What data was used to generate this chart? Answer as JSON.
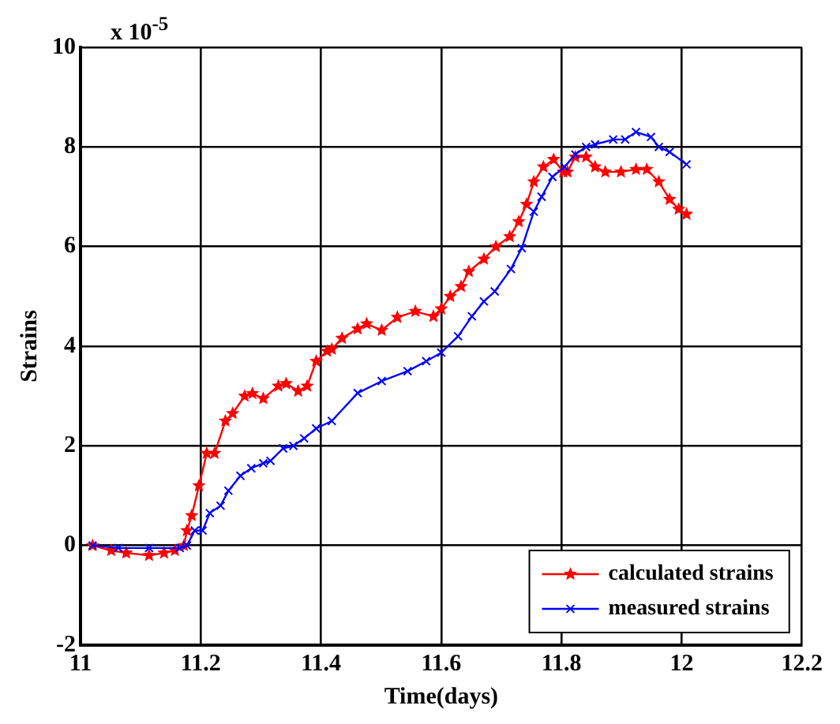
{
  "chart_data": {
    "type": "line",
    "xlabel": "Time(days)",
    "ylabel": "Strains",
    "annotations": [
      "x 10$^{-5}$"
    ],
    "xlim": [
      11,
      12.2
    ],
    "xticks": [
      11,
      11.2,
      11.4,
      11.6,
      11.8,
      12,
      12.2
    ],
    "ylim": [
      -2,
      10
    ],
    "yticks": [
      -2,
      0,
      2,
      4,
      6,
      8,
      10
    ],
    "grid": true,
    "legend": "bottom right",
    "line_style": "solid",
    "series": [
      {
        "name": "calculated strains",
        "color": "#ff0000",
        "marker": "star",
        "x": [
          11.02,
          11.051,
          11.076,
          11.114,
          11.139,
          11.157,
          11.172,
          11.177,
          11.185,
          11.197,
          11.21,
          11.223,
          11.241,
          11.253,
          11.273,
          11.286,
          11.304,
          11.329,
          11.342,
          11.362,
          11.377,
          11.392,
          11.41,
          11.418,
          11.435,
          11.461,
          11.476,
          11.501,
          11.527,
          11.557,
          11.587,
          11.6,
          11.615,
          11.633,
          11.646,
          11.671,
          11.691,
          11.714,
          11.729,
          11.742,
          11.754,
          11.77,
          11.787,
          11.803,
          11.81,
          11.823,
          11.841,
          11.856,
          11.873,
          11.899,
          11.924,
          11.942,
          11.962,
          11.98,
          11.995,
          12.008
        ],
        "values": [
          0,
          -0.1,
          -0.15,
          -0.2,
          -0.15,
          -0.1,
          0,
          0.3,
          0.6,
          1.2,
          1.85,
          1.85,
          2.5,
          2.65,
          3.0,
          3.05,
          2.95,
          3.2,
          3.25,
          3.1,
          3.2,
          3.7,
          3.9,
          3.94,
          4.16,
          4.35,
          4.45,
          4.32,
          4.58,
          4.7,
          4.6,
          4.75,
          5.0,
          5.2,
          5.5,
          5.75,
          6.0,
          6.2,
          6.5,
          6.85,
          7.3,
          7.6,
          7.75,
          7.5,
          7.5,
          7.8,
          7.8,
          7.6,
          7.5,
          7.5,
          7.55,
          7.55,
          7.3,
          6.95,
          6.75,
          6.65
        ]
      },
      {
        "name": "measured strains",
        "color": "#0000ff",
        "marker": "cross",
        "x": [
          11.02,
          11.063,
          11.114,
          11.165,
          11.177,
          11.19,
          11.203,
          11.215,
          11.233,
          11.246,
          11.266,
          11.284,
          11.304,
          11.316,
          11.337,
          11.354,
          11.372,
          11.392,
          11.418,
          11.461,
          11.501,
          11.544,
          11.575,
          11.6,
          11.628,
          11.651,
          11.671,
          11.689,
          11.716,
          11.734,
          11.754,
          11.767,
          11.785,
          11.805,
          11.823,
          11.841,
          11.856,
          11.886,
          11.906,
          11.924,
          11.949,
          11.962,
          11.98,
          12.008
        ],
        "values": [
          0,
          -0.05,
          -0.05,
          -0.05,
          0,
          0.3,
          0.3,
          0.65,
          0.8,
          1.1,
          1.4,
          1.55,
          1.65,
          1.7,
          1.95,
          2.0,
          2.15,
          2.35,
          2.5,
          3.06,
          3.3,
          3.5,
          3.7,
          3.87,
          4.2,
          4.6,
          4.9,
          5.1,
          5.55,
          5.97,
          6.7,
          7.0,
          7.4,
          7.6,
          7.85,
          8.0,
          8.05,
          8.15,
          8.15,
          8.3,
          8.2,
          8.0,
          7.9,
          7.65
        ]
      }
    ]
  }
}
